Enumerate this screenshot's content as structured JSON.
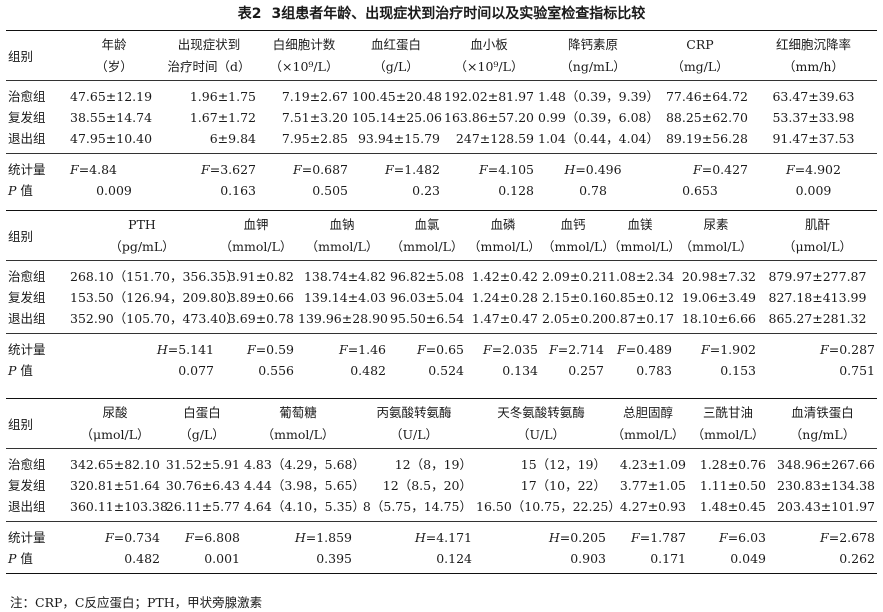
{
  "caption": {
    "number": "表2",
    "title": "3组患者年龄、出现症状到治疗时间以及实验室检查指标比较"
  },
  "group_header": "组别",
  "t1": {
    "headers": [
      [
        "年龄",
        "（岁）"
      ],
      [
        "出现症状到",
        "治疗时间（d）"
      ],
      [
        "白细胞计数",
        "（×10⁹/L）"
      ],
      [
        "血红蛋白",
        "（g/L）"
      ],
      [
        "血小板",
        "（×10⁹/L）"
      ],
      [
        "降钙素原",
        "（ng/mL）"
      ],
      [
        "CRP",
        "（mg/L）"
      ],
      [
        "红细胞沉降率",
        "（mm/h）"
      ]
    ],
    "rows": [
      {
        "group": "治愈组",
        "values": [
          "47.65±12.19",
          "1.96±1.75",
          "7.19±2.67",
          "100.45±20.48",
          "192.02±81.97",
          "1.48（0.39，9.39）",
          "77.46±64.72",
          "63.47±39.63"
        ]
      },
      {
        "group": "复发组",
        "values": [
          "38.55±14.74",
          "1.67±1.72",
          "7.51±3.20",
          "105.14±25.06",
          "163.86±57.20",
          "0.99（0.39，6.08）",
          "88.25±62.70",
          "53.37±33.98"
        ]
      },
      {
        "group": "退出组",
        "values": [
          "47.95±10.40",
          "6±9.84",
          "7.95±2.85",
          "93.94±15.79",
          "247±128.59",
          "1.04（0.44，4.04）",
          "89.19±56.28",
          "91.47±37.53"
        ]
      }
    ],
    "stat_label": "统计量",
    "stats": [
      [
        "F",
        "=4.84"
      ],
      [
        "F",
        "=3.627"
      ],
      [
        "F",
        "=0.687"
      ],
      [
        "F",
        "=1.482"
      ],
      [
        "F",
        "=4.105"
      ],
      [
        "H",
        "=0.496"
      ],
      [
        "F",
        "=0.427"
      ],
      [
        "F",
        "=4.902"
      ]
    ],
    "p_label": "值",
    "p_prefix": "P",
    "p_values": [
      "0.009",
      "0.163",
      "0.505",
      "0.23",
      "0.128",
      "0.78",
      "0.653",
      "0.009"
    ]
  },
  "t2": {
    "headers": [
      [
        "PTH",
        "（pg/mL）"
      ],
      [
        "血钾",
        "（mmol/L）"
      ],
      [
        "血钠",
        "（mmol/L）"
      ],
      [
        "血氯",
        "（mmol/L）"
      ],
      [
        "血磷",
        "（mmol/L）"
      ],
      [
        "血钙",
        "（mmol/L）"
      ],
      [
        "血镁",
        "（mmol/L）"
      ],
      [
        "尿素",
        "（mmol/L）"
      ],
      [
        "肌酐",
        "（μmol/L）"
      ]
    ],
    "rows": [
      {
        "group": "治愈组",
        "values": [
          "268.10（151.70，356.35）",
          "3.91±0.82",
          "138.74±4.82",
          "96.82±5.08",
          "1.42±0.42",
          "2.09±0.21",
          "1.08±2.34",
          "20.98±7.32",
          "879.97±277.87"
        ]
      },
      {
        "group": "复发组",
        "values": [
          "153.50（126.94，209.80）",
          "3.89±0.66",
          "139.14±4.03",
          "96.03±5.04",
          "1.24±0.28",
          "2.15±0.16",
          "0.85±0.12",
          "19.06±3.49",
          "827.18±413.99"
        ]
      },
      {
        "group": "退出组",
        "values": [
          "352.90（105.70，473.40）",
          "3.69±0.78",
          "139.96±28.90",
          "95.50±6.54",
          "1.47±0.47",
          "2.05±0.20",
          "0.87±0.17",
          "18.10±6.66",
          "865.27±281.32"
        ]
      }
    ],
    "stat_label": "统计量",
    "stats": [
      [
        "H",
        "=5.141"
      ],
      [
        "F",
        "=0.59"
      ],
      [
        "F",
        "=1.46"
      ],
      [
        "F",
        "=0.65"
      ],
      [
        "F",
        "=2.035"
      ],
      [
        "F",
        "=2.714"
      ],
      [
        "F",
        "=0.489"
      ],
      [
        "F",
        "=1.902"
      ],
      [
        "F",
        "=0.287"
      ]
    ],
    "p_label": "值",
    "p_prefix": "P",
    "p_values": [
      "0.077",
      "0.556",
      "0.482",
      "0.524",
      "0.134",
      "0.257",
      "0.783",
      "0.153",
      "0.751"
    ]
  },
  "t3": {
    "headers": [
      [
        "尿酸",
        "（μmol/L）"
      ],
      [
        "白蛋白",
        "（g/L）"
      ],
      [
        "葡萄糖",
        "（mmol/L）"
      ],
      [
        "丙氨酸转氨酶",
        "（U/L）"
      ],
      [
        "天冬氨酸转氨酶",
        "（U/L）"
      ],
      [
        "总胆固醇",
        "（mmol/L）"
      ],
      [
        "三酰甘油",
        "（mmol/L）"
      ],
      [
        "血清铁蛋白",
        "（ng/mL）"
      ]
    ],
    "rows": [
      {
        "group": "治愈组",
        "values": [
          "342.65±82.10",
          "31.52±5.91",
          "4.83（4.29，5.68）",
          "12（8，19）",
          "15（12，19）",
          "4.23±1.09",
          "1.28±0.76",
          "348.96±267.66"
        ]
      },
      {
        "group": "复发组",
        "values": [
          "320.81±51.64",
          "30.76±6.43",
          "4.44（3.98，5.65）",
          "12（8.5，20）",
          "17（10，22）",
          "3.77±1.05",
          "1.11±0.50",
          "230.83±134.38"
        ]
      },
      {
        "group": "退出组",
        "values": [
          "360.11±103.38",
          "26.11±5.77",
          "4.64（4.10，5.35）",
          "8（5.75，14.75）",
          "16.50（10.75，22.25）",
          "4.27±0.93",
          "1.48±0.45",
          "203.43±101.97"
        ]
      }
    ],
    "stat_label": "统计量",
    "stats": [
      [
        "F",
        "=0.734"
      ],
      [
        "F",
        "=6.808"
      ],
      [
        "H",
        "=1.859"
      ],
      [
        "H",
        "=4.171"
      ],
      [
        "H",
        "=0.205"
      ],
      [
        "F",
        "=1.787"
      ],
      [
        "F",
        "=6.03"
      ],
      [
        "F",
        "=2.678"
      ]
    ],
    "p_label": "值",
    "p_prefix": "P",
    "p_values": [
      "0.482",
      "0.001",
      "0.395",
      "0.124",
      "0.903",
      "0.171",
      "0.049",
      "0.262"
    ]
  },
  "note": "注：CRP，C反应蛋白；PTH，甲状旁腺激素"
}
